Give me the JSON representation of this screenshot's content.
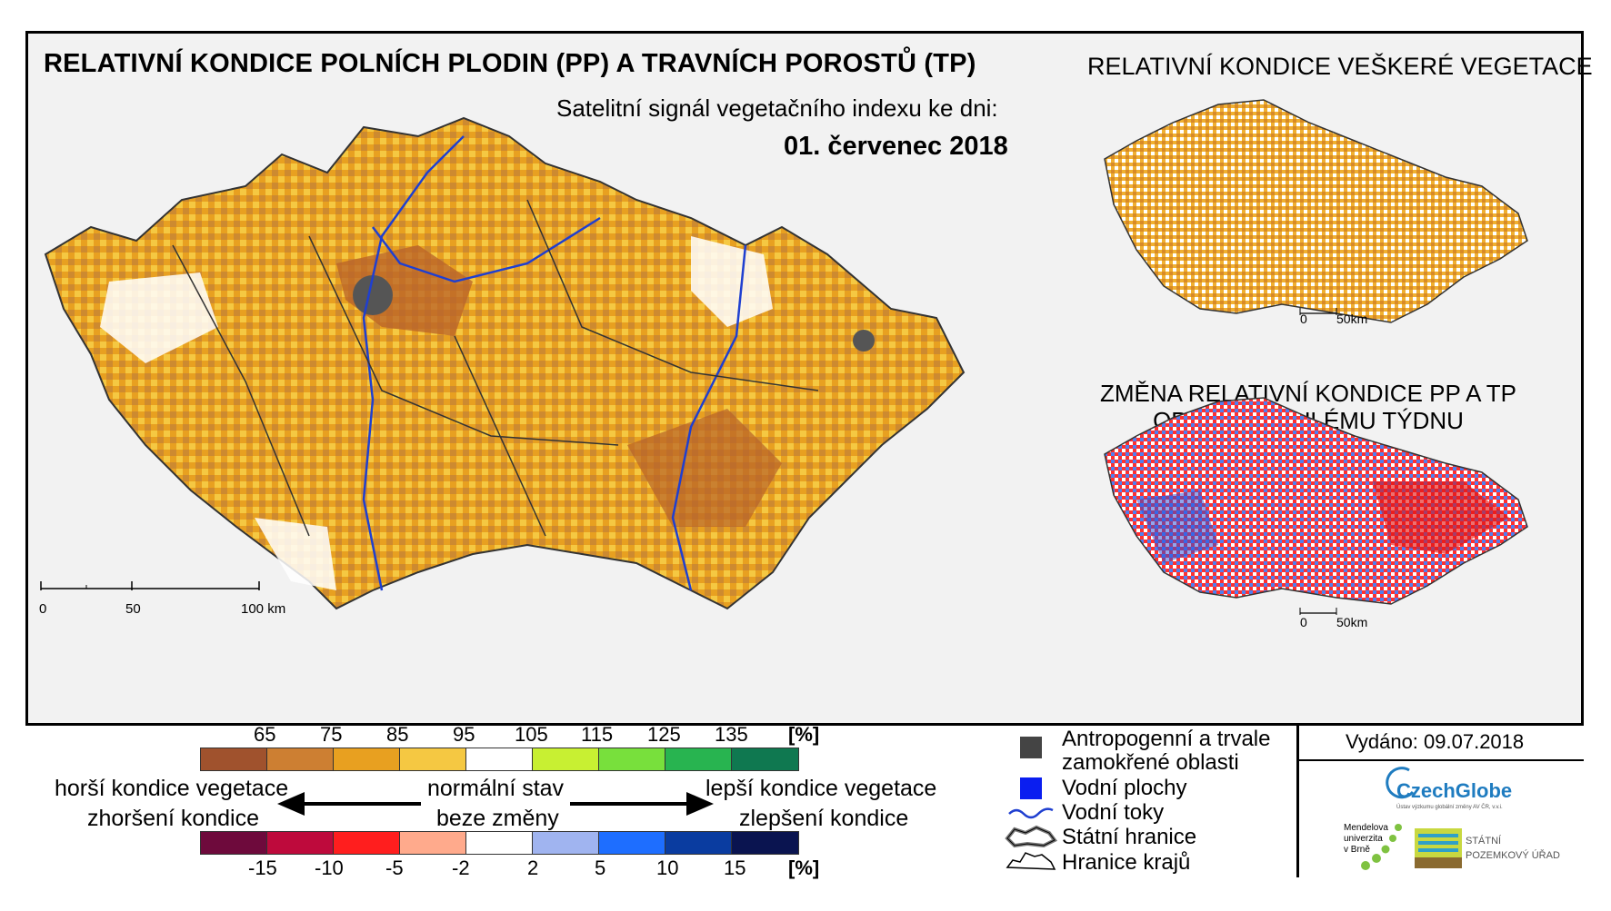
{
  "main_title": "RELATIVNÍ KONDICE POLNÍCH PLODIN (PP) A TRAVNÍCH POROSTŮ (TP)",
  "subtitle": "Satelitní signál vegetačního indexu ke dni:",
  "date": "01. červenec 2018",
  "right_title_1": "RELATIVNÍ KONDICE VEŠKERÉ VEGETACE",
  "right_title_2_line1": "ZMĚNA RELATIVNÍ KONDICE PP A TP",
  "right_title_2_line2": "OPROTI MINULÉMU TÝDNU",
  "main_scale": {
    "l0": "0",
    "l1": "50",
    "l2": "100 km"
  },
  "small_scale": {
    "l0": "0",
    "l1": "50km"
  },
  "condition_scale": {
    "labels": [
      "65",
      "75",
      "85",
      "95",
      "105",
      "115",
      "125",
      "135"
    ],
    "unit": "[%]",
    "colors": [
      "#a0522d",
      "#cd7f32",
      "#e8a020",
      "#f5c842",
      "#ffffff",
      "#c8f032",
      "#78e03c",
      "#28b450",
      "#0f7850"
    ]
  },
  "change_scale": {
    "labels": [
      "-15",
      "-10",
      "-5",
      "-2",
      "2",
      "5",
      "10",
      "15"
    ],
    "unit": "[%]",
    "colors": [
      "#6e0a3c",
      "#be0a3c",
      "#ff1e1e",
      "#ffaa8c",
      "#ffffff",
      "#a0b4f0",
      "#1e6eff",
      "#0a3ca0",
      "#0a1450"
    ]
  },
  "captions": {
    "worse_1": "horší kondice vegetace",
    "worse_2": "zhoršení kondice",
    "normal_1": "normální stav",
    "normal_2": "beze změny",
    "better_1": "lepší kondice vegetace",
    "better_2": "zlepšení kondice"
  },
  "legend": {
    "anthro_1": "Antropogenní a trvale",
    "anthro_2": "zamokřené oblasti",
    "water_bodies": "Vodní plochy",
    "rivers": "Vodní toky",
    "state_border": "Státní hranice",
    "region_border": "Hranice krajů"
  },
  "issued": "Vydáno: 09.07.2018",
  "logos": {
    "czechglobe": "CzechGlobe",
    "czechglobe_sub": "Ústav výzkumu globální změny AV ČR, v.v.i.",
    "mendelu_1": "Mendelova",
    "mendelu_2": "univerzita",
    "mendelu_3": "v Brně",
    "spu_1": "STÁTNÍ",
    "spu_2": "POZEMKOVÝ ÚŘAD"
  },
  "icons": [
    "anthro-square-icon",
    "water-square-icon",
    "river-line-icon",
    "state-border-icon",
    "region-border-icon",
    "arrow-left-icon",
    "arrow-right-icon"
  ]
}
